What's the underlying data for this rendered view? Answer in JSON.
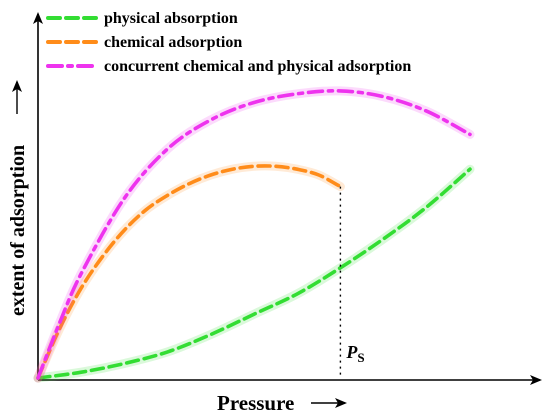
{
  "chart_data": {
    "type": "line",
    "title": "",
    "xlabel": "Pressure",
    "ylabel": "extent of adsorption",
    "xlim": [
      0,
      1
    ],
    "ylim": [
      0,
      1
    ],
    "annotation": {
      "label_main": "P",
      "label_sub": "S",
      "x": 0.7
    },
    "series": [
      {
        "name": "physical absorption",
        "color": "#33dd33",
        "dash": "dash",
        "x": [
          0,
          0.1,
          0.2,
          0.3,
          0.4,
          0.5,
          0.6,
          0.7,
          0.8,
          0.9,
          1.0
        ],
        "y": [
          0.0,
          0.02,
          0.05,
          0.09,
          0.15,
          0.22,
          0.29,
          0.38,
          0.48,
          0.59,
          0.72
        ]
      },
      {
        "name": "chemical adsorption",
        "color": "#ff8c1a",
        "dash": "dash",
        "x": [
          0,
          0.05,
          0.1,
          0.15,
          0.2,
          0.25,
          0.3,
          0.35,
          0.4,
          0.45,
          0.5,
          0.55,
          0.6,
          0.65,
          0.7
        ],
        "y": [
          0.0,
          0.17,
          0.31,
          0.42,
          0.51,
          0.58,
          0.63,
          0.67,
          0.7,
          0.72,
          0.73,
          0.73,
          0.72,
          0.7,
          0.66
        ]
      },
      {
        "name": "concurrent chemical and physical adsorption",
        "color": "#ee33ee",
        "dash": "dashdot",
        "x": [
          0,
          0.05,
          0.1,
          0.2,
          0.3,
          0.4,
          0.5,
          0.6,
          0.7,
          0.8,
          0.9,
          1.0
        ],
        "y": [
          0.0,
          0.19,
          0.36,
          0.62,
          0.79,
          0.89,
          0.95,
          0.98,
          0.99,
          0.97,
          0.92,
          0.84
        ]
      }
    ],
    "legend": {
      "position": "top-left"
    },
    "grid": false
  }
}
